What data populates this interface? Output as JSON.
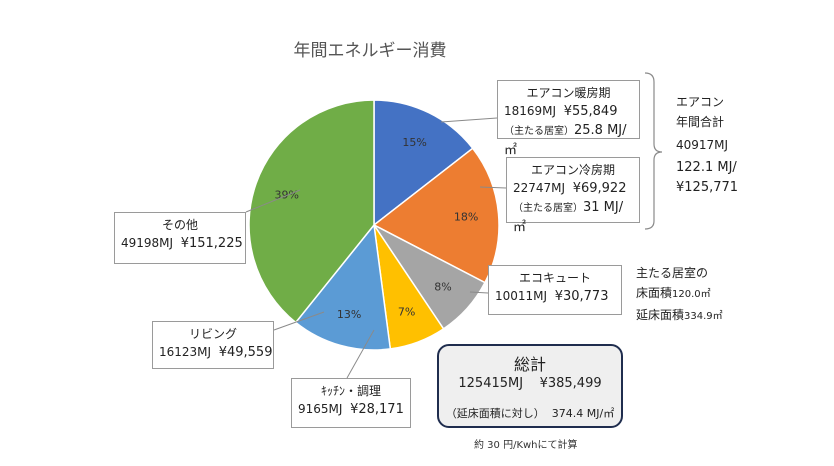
{
  "title": "年間エネルギー消費",
  "chart_data": {
    "type": "pie",
    "title": "年間エネルギー消費",
    "categories": [
      "エアコン暖房期",
      "エアコン冷房期",
      "エコキュート",
      "キッチン・調理",
      "リビング",
      "その他"
    ],
    "values": [
      18169,
      22747,
      10011,
      9165,
      16123,
      49198
    ],
    "percent_labels": [
      "15%",
      "18%",
      "8%",
      "7%",
      "13%",
      "39%"
    ],
    "colors": [
      "#4472c4",
      "#ed7d31",
      "#a5a5a5",
      "#ffc000",
      "#5b9bd5",
      "#70ad47"
    ]
  },
  "labels": {
    "heating": {
      "name": "エアコン暖房期",
      "mj": "18169MJ",
      "yen": "¥55,849",
      "room": "（主たる居室）",
      "room_val": "25.8 MJ/㎡"
    },
    "cooling": {
      "name": "エアコン冷房期",
      "mj": "22747MJ",
      "yen": "¥69,922",
      "room": "（主たる居室）",
      "room_val": "31 MJ/㎡"
    },
    "ecocute": {
      "name": "エコキュート",
      "mj": "10011MJ",
      "yen": "¥30,773"
    },
    "kitchen": {
      "name": "ｷｯﾁﾝ・調理",
      "mj": "9165MJ",
      "yen": "¥28,171"
    },
    "living": {
      "name": "リビング",
      "mj": "16123MJ",
      "yen": "¥49,559"
    },
    "other": {
      "name": "その他",
      "mj": "49198MJ",
      "yen": "¥151,225"
    }
  },
  "aircon_total": {
    "l1": "エアコン",
    "l2": "年間合計",
    "mj": "40917MJ",
    "per": "122.1 MJ/",
    "yen": "¥125,771"
  },
  "floor": {
    "l1": "主たる居室の",
    "l2": "床面積",
    "v1": "120.0㎡",
    "l3": "延床面積",
    "v2": "334.9㎡"
  },
  "total": {
    "title": "総計",
    "mj": "125415MJ",
    "yen": "¥385,499",
    "note_l": "（延床面積に対し）",
    "note_v": "374.4 MJ/㎡"
  },
  "footnote": "約 30 円/Kwhにて計算"
}
